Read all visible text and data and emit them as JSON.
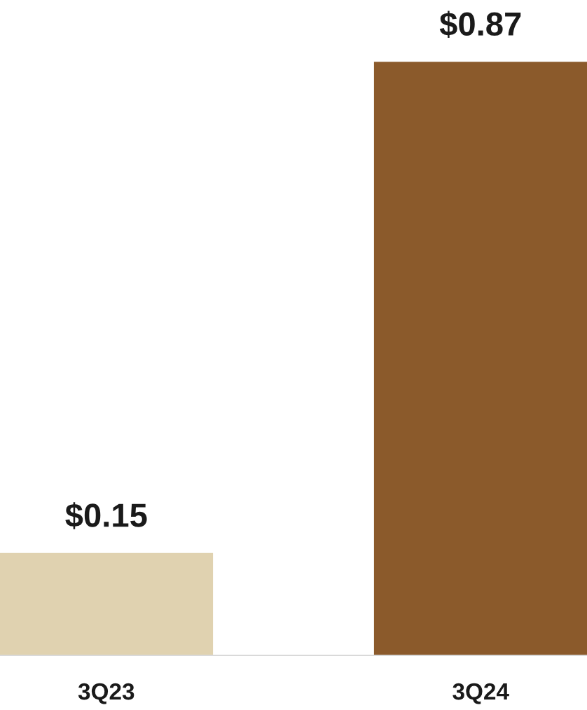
{
  "chart_data": {
    "type": "bar",
    "categories": [
      "3Q23",
      "3Q24"
    ],
    "values": [
      0.15,
      0.87
    ],
    "colors": [
      "#e0d2b0",
      "#8b5a2b"
    ],
    "value_labels": [
      "$0.15",
      "$0.87"
    ]
  }
}
